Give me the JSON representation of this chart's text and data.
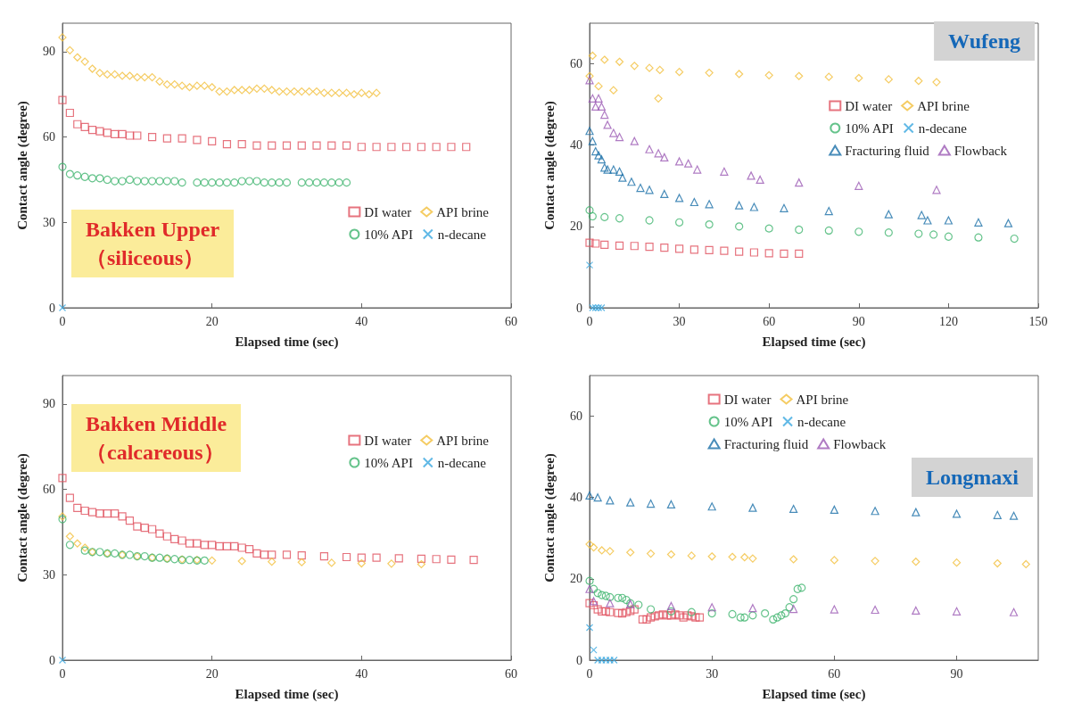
{
  "chart_data": [
    {
      "type": "scatter",
      "xlabel": "Elapsed time (sec)",
      "ylabel": "Contact angle (degree)",
      "xlim": [
        0,
        60
      ],
      "xticks": [
        0,
        20,
        40,
        60
      ],
      "ylim": [
        0,
        100
      ],
      "yticks": [
        0,
        30,
        60,
        90
      ],
      "legend": "bottom right",
      "annotations": [
        "Bakken Upper",
        "（siliceous）"
      ],
      "series": [
        {
          "name": "DI water",
          "color": "#e0505e",
          "marker": "square",
          "x": [
            0,
            1,
            2,
            3,
            4,
            5,
            6,
            7,
            8,
            9,
            10,
            12,
            14,
            16,
            18,
            20,
            22,
            24,
            26,
            28,
            30,
            32,
            34,
            36,
            38,
            40,
            42,
            44,
            46,
            48,
            50,
            52,
            54
          ],
          "values": [
            73,
            68.5,
            64.5,
            63.5,
            62.5,
            62,
            61.5,
            61,
            61,
            60.5,
            60.5,
            60,
            59.5,
            59.5,
            59,
            58.5,
            57.5,
            57.5,
            57,
            57,
            57,
            57,
            57,
            57,
            57,
            56.5,
            56.5,
            56.5,
            56.5,
            56.5,
            56.5,
            56.5,
            56.5
          ]
        },
        {
          "name": "API brine",
          "color": "#f2bf3c",
          "marker": "diamond",
          "x": [
            0,
            1,
            2,
            3,
            4,
            5,
            6,
            7,
            8,
            9,
            10,
            11,
            12,
            13,
            14,
            15,
            16,
            17,
            18,
            19,
            20,
            21,
            22,
            23,
            24,
            25,
            26,
            27,
            28,
            29,
            30,
            31,
            32,
            33,
            34,
            35,
            36,
            37,
            38,
            39,
            40,
            41,
            42
          ],
          "values": [
            95,
            90.5,
            88,
            86.5,
            84,
            82.5,
            82,
            82,
            81.5,
            81.5,
            81,
            81,
            81,
            79.5,
            78.5,
            78.5,
            78,
            77.5,
            78,
            78,
            77.5,
            76,
            76,
            76.5,
            76.5,
            76.5,
            77,
            77,
            76.5,
            76,
            76,
            76,
            76,
            76,
            76,
            75.5,
            75.5,
            75.5,
            75.5,
            75,
            75.5,
            75,
            75.5
          ]
        },
        {
          "name": "10% API",
          "color": "#3fb46e",
          "marker": "circle",
          "x": [
            0,
            1,
            2,
            3,
            4,
            5,
            6,
            7,
            8,
            9,
            10,
            11,
            12,
            13,
            14,
            15,
            16,
            18,
            19,
            20,
            21,
            22,
            23,
            24,
            25,
            26,
            27,
            28,
            29,
            30,
            32,
            33,
            34,
            35,
            36,
            37,
            38
          ],
          "values": [
            49.5,
            47,
            46.5,
            46,
            45.5,
            45.5,
            45,
            44.5,
            44.5,
            45,
            44.5,
            44.5,
            44.5,
            44.5,
            44.5,
            44.5,
            44,
            44,
            44,
            44,
            44,
            44,
            44,
            44.5,
            44.5,
            44.5,
            44,
            44,
            44,
            44,
            44,
            44,
            44,
            44,
            44,
            44,
            44
          ]
        },
        {
          "name": "n-decane",
          "color": "#3aa8e0",
          "marker": "cross",
          "x": [
            0
          ],
          "values": [
            0
          ]
        }
      ]
    },
    {
      "type": "scatter",
      "xlabel": "Elapsed time (sec)",
      "ylabel": "Contact angle (degree)",
      "xlim": [
        0,
        150
      ],
      "xticks": [
        0,
        30,
        60,
        90,
        120,
        150
      ],
      "ylim": [
        0,
        70
      ],
      "yticks": [
        0,
        20,
        40,
        60
      ],
      "legend": "top right",
      "annotations": [
        "Wufeng"
      ],
      "series": [
        {
          "name": "DI water",
          "color": "#e0505e",
          "marker": "square",
          "x": [
            0,
            2,
            5,
            10,
            15,
            20,
            25,
            30,
            35,
            40,
            45,
            50,
            55,
            60,
            65,
            70
          ],
          "values": [
            16,
            15.8,
            15.5,
            15.3,
            15.2,
            15,
            14.8,
            14.5,
            14.3,
            14.2,
            14,
            13.8,
            13.6,
            13.4,
            13.3,
            13.3
          ]
        },
        {
          "name": "API brine",
          "color": "#f2bf3c",
          "marker": "diamond",
          "x": [
            0,
            1,
            3,
            5,
            8,
            10,
            15,
            20,
            23,
            23.5,
            30,
            40,
            50,
            60,
            70,
            80,
            90,
            100,
            110,
            116
          ],
          "values": [
            57,
            62,
            54.5,
            61,
            53.5,
            60.5,
            59.5,
            59,
            51.5,
            58.5,
            58,
            57.8,
            57.5,
            57.2,
            57,
            56.8,
            56.5,
            56.2,
            55.8,
            55.5
          ]
        },
        {
          "name": "10% API",
          "color": "#3fb46e",
          "marker": "circle",
          "x": [
            0,
            1,
            5,
            10,
            20,
            30,
            40,
            50,
            60,
            70,
            80,
            90,
            100,
            110,
            115,
            120,
            130,
            142
          ],
          "values": [
            24,
            22.5,
            22.3,
            22,
            21.5,
            21,
            20.5,
            20,
            19.5,
            19.2,
            19,
            18.7,
            18.5,
            18.2,
            18,
            17.5,
            17.3,
            17
          ]
        },
        {
          "name": "n-decane",
          "color": "#3aa8e0",
          "marker": "cross",
          "x": [
            0,
            1,
            2,
            3,
            4
          ],
          "values": [
            10.5,
            0,
            0,
            0,
            0
          ]
        },
        {
          "name": "Fracturing fluid",
          "color": "#1a6fa8",
          "marker": "triangle",
          "x": [
            0,
            1,
            2,
            3,
            4,
            5,
            6,
            8,
            10,
            11,
            14,
            17,
            20,
            25,
            30,
            35,
            40,
            50,
            55,
            65,
            80,
            100,
            111,
            113,
            120,
            130,
            140
          ],
          "values": [
            43.5,
            41,
            38.5,
            37.5,
            36.5,
            34.5,
            34,
            34,
            33.5,
            32,
            31,
            29.5,
            29,
            28,
            27,
            26,
            25.5,
            25.2,
            24.8,
            24.5,
            23.8,
            23,
            22.8,
            21.5,
            21.5,
            21,
            20.8
          ]
        },
        {
          "name": "Flowback",
          "color": "#9b5ab4",
          "marker": "triangle",
          "x": [
            0,
            1,
            2,
            3,
            4,
            5,
            6,
            8,
            10,
            15,
            20,
            23,
            25,
            30,
            33,
            36,
            45,
            54,
            57,
            70,
            90,
            116
          ],
          "values": [
            56,
            51.5,
            49.5,
            51.5,
            49.5,
            47.5,
            45,
            43,
            42,
            41,
            39,
            38,
            37,
            36,
            35.5,
            34,
            33.5,
            32.5,
            31.5,
            30.8,
            30,
            29
          ]
        }
      ]
    },
    {
      "type": "scatter",
      "xlabel": "Elapsed time (sec)",
      "ylabel": "Contact angle (degree)",
      "xlim": [
        0,
        60
      ],
      "xticks": [
        0,
        20,
        40,
        60
      ],
      "ylim": [
        0,
        100
      ],
      "yticks": [
        0,
        30,
        60,
        90
      ],
      "legend": "top right",
      "annotations": [
        "Bakken Middle",
        "（calcareous）"
      ],
      "series": [
        {
          "name": "DI water",
          "color": "#e0505e",
          "marker": "square",
          "x": [
            0,
            1,
            2,
            3,
            4,
            5,
            6,
            7,
            8,
            9,
            10,
            11,
            12,
            13,
            14,
            15,
            16,
            17,
            18,
            19,
            20,
            21,
            22,
            23,
            24,
            25,
            26,
            27,
            28,
            30,
            32,
            35,
            38,
            40,
            42,
            45,
            48,
            50,
            52,
            55
          ],
          "values": [
            64,
            57,
            53.5,
            52.5,
            52,
            51.5,
            51.5,
            51.5,
            50.5,
            49,
            47,
            46.5,
            46,
            44.5,
            43.5,
            42.5,
            42,
            41,
            41,
            40.5,
            40.5,
            40,
            40,
            40,
            39.5,
            39,
            37.5,
            37,
            37,
            37,
            36.8,
            36.5,
            36.2,
            36,
            36,
            35.8,
            35.6,
            35.5,
            35.3,
            35.2
          ]
        },
        {
          "name": "API brine",
          "color": "#f2bf3c",
          "marker": "diamond",
          "x": [
            0,
            1,
            2,
            3,
            4,
            6,
            8,
            10,
            12,
            14,
            16,
            18,
            20,
            24,
            28,
            32,
            36,
            40,
            44,
            48
          ],
          "values": [
            50.5,
            43.5,
            41,
            39.5,
            38,
            37.5,
            37,
            36.5,
            36,
            35.7,
            35.4,
            35.2,
            35,
            34.8,
            34.6,
            34.4,
            34.2,
            34,
            33.9,
            33.7
          ]
        },
        {
          "name": "10% API",
          "color": "#3fb46e",
          "marker": "circle",
          "x": [
            0,
            1,
            3,
            4,
            5,
            6,
            7,
            8,
            9,
            10,
            11,
            12,
            13,
            14,
            15,
            16,
            17,
            18,
            19
          ],
          "values": [
            49.5,
            40.5,
            38.5,
            38,
            38,
            37.5,
            37.5,
            37,
            37,
            36.5,
            36.5,
            36,
            36,
            35.7,
            35.5,
            35.2,
            35.2,
            35,
            35
          ]
        },
        {
          "name": "n-decane",
          "color": "#3aa8e0",
          "marker": "cross",
          "x": [
            0
          ],
          "values": [
            0
          ]
        }
      ]
    },
    {
      "type": "scatter",
      "xlabel": "Elapsed time (sec)",
      "ylabel": "Contact angle (degree)",
      "xlim": [
        0,
        110
      ],
      "xticks": [
        0,
        30,
        60,
        90
      ],
      "ylim": [
        0,
        70
      ],
      "yticks": [
        0,
        20,
        40,
        60
      ],
      "legend": "top",
      "annotations": [
        "Longmaxi"
      ],
      "series": [
        {
          "name": "DI water",
          "color": "#e0505e",
          "marker": "square",
          "x": [
            0,
            1,
            2,
            3,
            4,
            5,
            7,
            8,
            9,
            10,
            11,
            13,
            14,
            15,
            16,
            17,
            18,
            19,
            20,
            21,
            22,
            23,
            24,
            25,
            26,
            27
          ],
          "values": [
            14,
            13.5,
            12.5,
            12,
            12,
            11.8,
            11.6,
            11.5,
            11.8,
            12.1,
            12.5,
            10,
            10,
            10.5,
            10.8,
            11,
            11.2,
            11,
            11,
            11.2,
            11,
            10.5,
            11,
            10.8,
            10.5,
            10.5
          ]
        },
        {
          "name": "API brine",
          "color": "#f2bf3c",
          "marker": "diamond",
          "x": [
            0,
            1,
            3,
            5,
            10,
            15,
            20,
            25,
            30,
            35,
            38,
            40,
            50,
            60,
            70,
            80,
            90,
            100,
            107
          ],
          "values": [
            28.5,
            27.7,
            27,
            26.8,
            26.5,
            26.2,
            26,
            25.7,
            25.5,
            25.4,
            25.3,
            25,
            24.8,
            24.6,
            24.4,
            24.2,
            24,
            23.8,
            23.6
          ]
        },
        {
          "name": "10% API",
          "color": "#3fb46e",
          "marker": "circle",
          "x": [
            0,
            1,
            2,
            3,
            4,
            5,
            7,
            8,
            9,
            10,
            12,
            15,
            20,
            25,
            30,
            35,
            37,
            38,
            40,
            43,
            45,
            46,
            47,
            48,
            49,
            50,
            51,
            52
          ],
          "values": [
            19.5,
            17.5,
            16.5,
            16,
            15.8,
            15.5,
            15.3,
            15.3,
            14.8,
            14,
            13.6,
            12.5,
            12,
            11.8,
            11.5,
            11.3,
            10.5,
            10.5,
            11,
            11.5,
            10,
            10.5,
            11,
            11.5,
            13,
            15,
            17.5,
            17.8
          ]
        },
        {
          "name": "n-decane",
          "color": "#3aa8e0",
          "marker": "cross",
          "x": [
            0,
            1,
            2,
            3,
            4,
            5,
            6
          ],
          "values": [
            8,
            2.5,
            0,
            0,
            0,
            0,
            0
          ]
        },
        {
          "name": "Fracturing fluid",
          "color": "#1a6fa8",
          "marker": "triangle",
          "x": [
            0,
            2,
            5,
            10,
            15,
            20,
            30,
            40,
            50,
            60,
            70,
            80,
            90,
            100,
            104
          ],
          "values": [
            40.5,
            40,
            39.3,
            38.8,
            38.5,
            38.3,
            37.8,
            37.5,
            37.2,
            37,
            36.7,
            36.4,
            36,
            35.7,
            35.5
          ]
        },
        {
          "name": "Flowback",
          "color": "#9b5ab4",
          "marker": "triangle",
          "x": [
            0,
            1,
            5,
            10,
            20,
            30,
            40,
            50,
            60,
            70,
            80,
            90,
            104
          ],
          "values": [
            17.5,
            14.5,
            14,
            13.8,
            13.3,
            13,
            12.8,
            12.6,
            12.5,
            12.4,
            12.2,
            12,
            11.8
          ]
        }
      ]
    }
  ]
}
